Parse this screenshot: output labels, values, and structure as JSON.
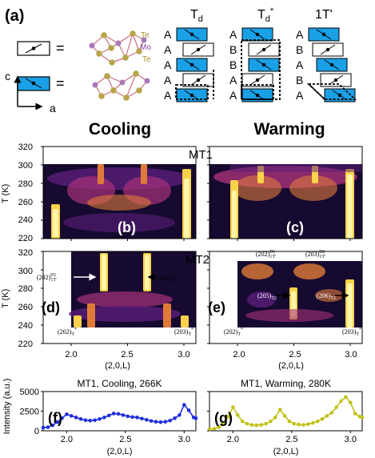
{
  "panel_a": {
    "label": "(a)",
    "atoms": {
      "te_top": "Te",
      "mo": "Mo",
      "te_bottom": "Te"
    },
    "equals": "=",
    "axis_c": "c",
    "axis_a": "a",
    "stack_titles": [
      "T",
      "T",
      "1T'"
    ],
    "stack_title_subs": [
      "d",
      "d",
      ""
    ],
    "stack_title_sup": "*",
    "td_letters": [
      "A",
      "A",
      "A",
      "A",
      "A"
    ],
    "tdstar_letters": [
      "A",
      "B",
      "B",
      "A",
      "A"
    ],
    "one_t_letters": [
      "A",
      "B",
      "A",
      "B",
      "A"
    ]
  },
  "colors": {
    "blue_layer": "#1aa0e6",
    "atom_te": "#b8a54a",
    "atom_mo": "#a878b8",
    "bond": "#c96f7a",
    "line_blue": "#1f2ed8",
    "line_yellow": "#c2c21a",
    "mo_text": "#8a4aa6",
    "te_text": "#a8912a"
  },
  "headers": {
    "cooling": "Cooling",
    "warming": "Warming"
  },
  "heatmaps": {
    "ylabel": "T (K)",
    "xlabel": "(2,0,L)",
    "mt1_label": "MT1",
    "mt2_label": "MT2",
    "yticks_top": [
      "320",
      "300",
      "280",
      "260",
      "240",
      "220"
    ],
    "yticks_bottom": [
      "320",
      "300",
      "280",
      "260",
      "240",
      "220"
    ],
    "xticks": [
      "2.0",
      "2.5",
      "3.0"
    ],
    "panel_labels": [
      "(b)",
      "(c)",
      "(d)",
      "(e)"
    ],
    "ann_d_left_main": "(202)",
    "ann_d_left_sub": "1T'",
    "ann_d_left_sup": "D1",
    "ann_d_right_main": "(203)",
    "ann_d_right_sub": "1T'",
    "ann_d_right_sup": "D2",
    "ann_d_bl_main": "(202)",
    "ann_d_bl_sub": "T",
    "ann_d_bl_sup": "*",
    "ann_d_br_main": "(203)",
    "ann_d_br_sub": "T",
    "ann_d_br_sup": "*",
    "ann_e_tl_main": "(202)",
    "ann_e_tl_sub": "1T'",
    "ann_e_tl_sup": "D1",
    "ann_e_tr_main": "(203)",
    "ann_e_tr_sub": "1T'",
    "ann_e_tr_sup": "D2",
    "ann_e_mid_main": "(205)",
    "ann_e_mid_sub": "T2",
    "ann_e_right_main": "(206)",
    "ann_e_right_sub": "T2",
    "ann_e_bl_main": "(202)",
    "ann_e_bl_sub": "T",
    "ann_e_bl_sup": "*",
    "ann_e_br_main": "(203)",
    "ann_e_br_sub": "T",
    "ann_e_br_sup": "*"
  },
  "chart_data": [
    {
      "type": "line",
      "panel": "(f)",
      "title": "MT1, Cooling, 266K",
      "xlabel": "(2,0,L)",
      "ylabel": "Intensity (a.u.)",
      "xlim": [
        1.8,
        3.1
      ],
      "ylim": [
        0,
        5000
      ],
      "yticks": [
        0,
        2500,
        5000
      ],
      "yticklabels": [
        "0",
        "2500",
        "5000"
      ],
      "xticks": [
        2.0,
        2.5,
        3.0
      ],
      "xticklabels": [
        "2.0",
        "2.5",
        "3.0"
      ],
      "color": "#1f2ed8",
      "x": [
        1.8,
        1.84,
        1.88,
        1.92,
        1.96,
        2.0,
        2.04,
        2.08,
        2.12,
        2.16,
        2.2,
        2.24,
        2.28,
        2.32,
        2.36,
        2.4,
        2.44,
        2.48,
        2.52,
        2.56,
        2.6,
        2.64,
        2.68,
        2.72,
        2.76,
        2.8,
        2.84,
        2.88,
        2.92,
        2.96,
        3.0,
        3.04,
        3.08,
        3.1
      ],
      "y": [
        400,
        450,
        700,
        1100,
        1600,
        2100,
        1900,
        1700,
        1500,
        1350,
        1300,
        1350,
        1500,
        1700,
        1950,
        2200,
        2150,
        2000,
        1850,
        1750,
        1700,
        1550,
        1400,
        1250,
        1150,
        1100,
        1150,
        1300,
        1600,
        2000,
        3300,
        2600,
        1700,
        1600
      ]
    },
    {
      "type": "line",
      "panel": "(g)",
      "title": "MT1, Warming, 280K",
      "xlabel": "(2,0,L)",
      "ylabel": "",
      "xlim": [
        1.8,
        3.1
      ],
      "ylim": [
        0,
        5000
      ],
      "xticks": [
        2.0,
        2.5,
        3.0
      ],
      "xticklabels": [
        "2.0",
        "2.5",
        "3.0"
      ],
      "color": "#c2c21a",
      "x": [
        1.8,
        1.84,
        1.88,
        1.92,
        1.96,
        2.0,
        2.04,
        2.08,
        2.12,
        2.16,
        2.2,
        2.24,
        2.28,
        2.32,
        2.36,
        2.4,
        2.44,
        2.48,
        2.52,
        2.56,
        2.6,
        2.64,
        2.68,
        2.72,
        2.76,
        2.8,
        2.84,
        2.88,
        2.92,
        2.96,
        3.0,
        3.04,
        3.08,
        3.1
      ],
      "y": [
        200,
        250,
        450,
        900,
        1800,
        3000,
        2000,
        1200,
        900,
        750,
        700,
        750,
        900,
        1200,
        1700,
        2700,
        1900,
        1200,
        900,
        800,
        750,
        850,
        1000,
        1200,
        1500,
        1900,
        2300,
        3000,
        3800,
        4300,
        3600,
        2200,
        1800,
        1700
      ]
    }
  ]
}
